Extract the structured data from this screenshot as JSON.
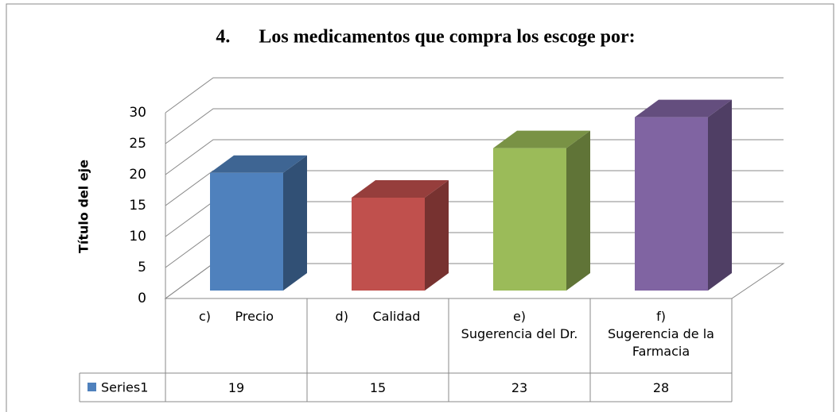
{
  "chart_data": {
    "type": "bar3d",
    "title": "4.      Los medicamentos que compra los escoge por:",
    "y_label": "Título del eje",
    "categories": [
      "c)      Precio",
      "d)      Calidad",
      "e)\nSugerencia del Dr.",
      "f)\nSugerencia de la Farmacia"
    ],
    "series": [
      {
        "name": "Series1",
        "color": "#4f81bd",
        "values": [
          19,
          15,
          23,
          28
        ]
      }
    ],
    "colors": [
      "#4f81bd",
      "#c0504d",
      "#9bbb59",
      "#8064a2"
    ],
    "ylim": [
      0,
      30
    ],
    "yticks": [
      0,
      5,
      10,
      15,
      20,
      25,
      30
    ],
    "grid": true
  }
}
